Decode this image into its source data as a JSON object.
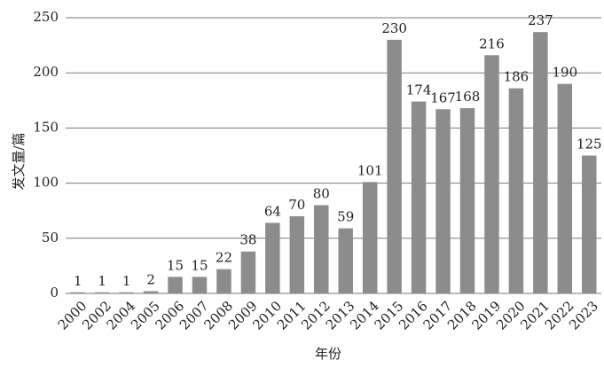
{
  "chart_data": {
    "type": "bar",
    "categories": [
      "2000",
      "2002",
      "2004",
      "2005",
      "2006",
      "2007",
      "2008",
      "2009",
      "2010",
      "2011",
      "2012",
      "2013",
      "2014",
      "2015",
      "2016",
      "2017",
      "2018",
      "2019",
      "2020",
      "2021",
      "2022",
      "2023"
    ],
    "values": [
      1,
      1,
      1,
      2,
      15,
      15,
      22,
      38,
      64,
      70,
      80,
      59,
      101,
      230,
      174,
      167,
      168,
      216,
      186,
      237,
      190,
      125
    ],
    "xlabel": "年份",
    "ylabel": "发文量/篇",
    "ylim": [
      0,
      250
    ],
    "yticks": [
      0,
      50,
      100,
      150,
      200,
      250
    ],
    "grid": true,
    "data_labels": true,
    "bar_color": "#8c8c8c",
    "grid_color": "#7a7a7a"
  }
}
